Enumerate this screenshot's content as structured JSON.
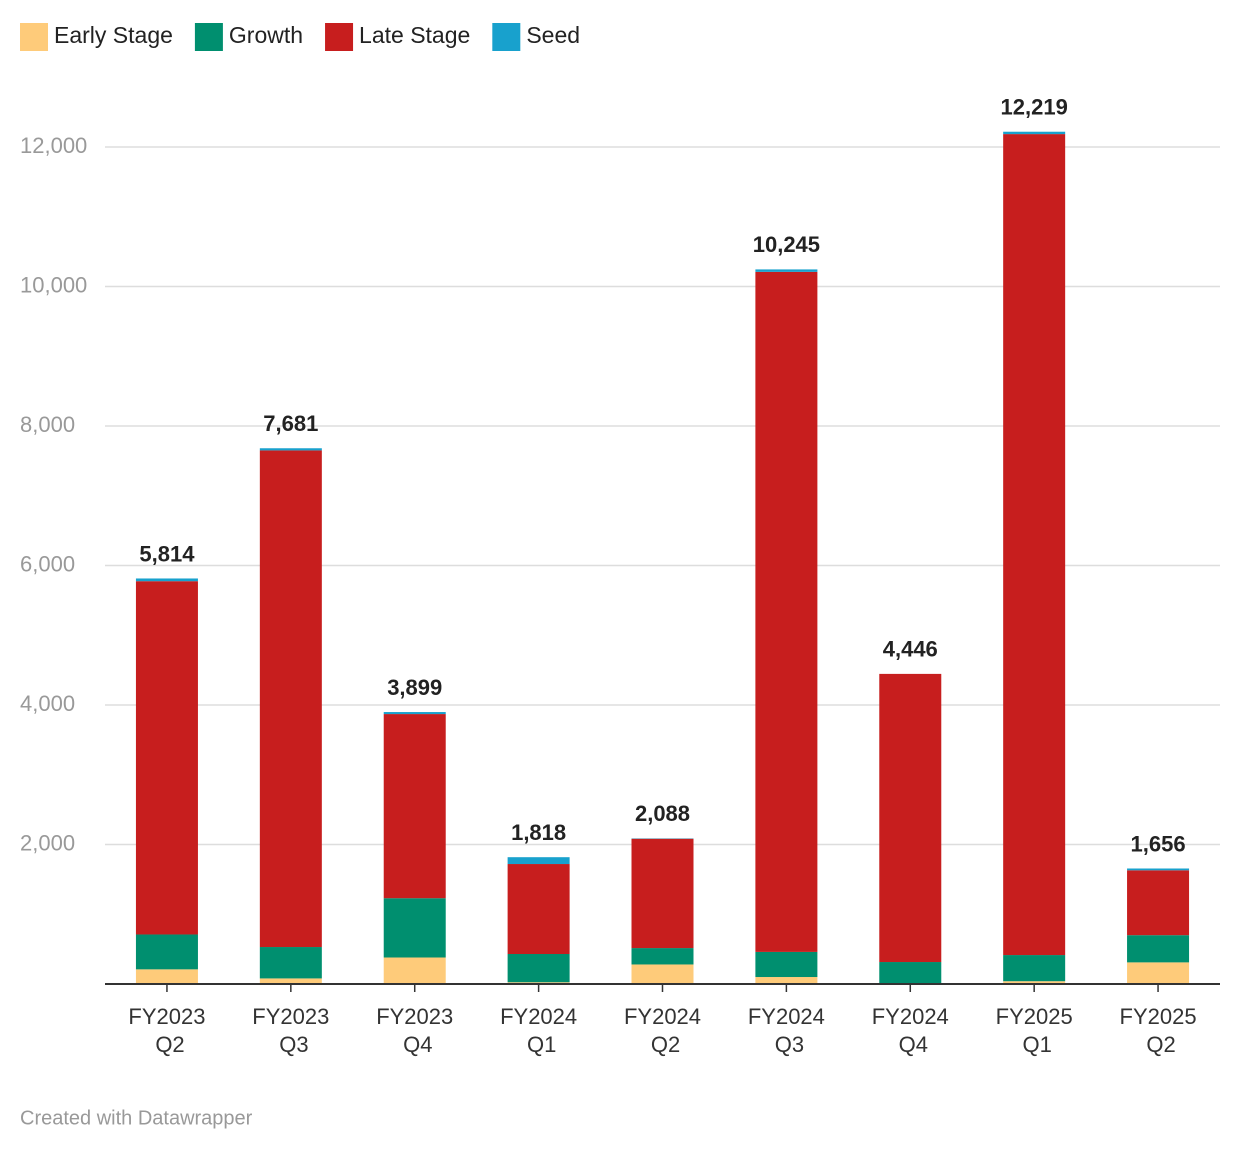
{
  "chart_data": {
    "type": "stacked-bar",
    "categories": [
      "FY2023 Q2",
      "FY2023 Q3",
      "FY2023 Q4",
      "FY2024 Q1",
      "FY2024 Q2",
      "FY2024 Q3",
      "FY2024 Q4",
      "FY2025 Q1",
      "FY2025 Q2"
    ],
    "series": [
      {
        "name": "Early Stage",
        "color": "#fecb7a",
        "values": [
          210,
          80,
          380,
          25,
          280,
          100,
          5,
          40,
          310
        ]
      },
      {
        "name": "Growth",
        "color": "#008f6f",
        "values": [
          500,
          450,
          850,
          405,
          235,
          360,
          310,
          375,
          390
        ]
      },
      {
        "name": "Late Stage",
        "color": "#c71e1e",
        "values": [
          5065,
          7120,
          2640,
          1290,
          1568,
          9750,
          4131,
          11770,
          930
        ]
      },
      {
        "name": "Seed",
        "color": "#18a1cd",
        "values": [
          39,
          31,
          29,
          98,
          5,
          35,
          0,
          34,
          26
        ]
      }
    ],
    "totals": [
      5814,
      7681,
      3899,
      1818,
      2088,
      10245,
      4446,
      12219,
      1656
    ],
    "total_labels": [
      "5,814",
      "7,681",
      "3,899",
      "1,818",
      "2,088",
      "10,245",
      "4,446",
      "12,219",
      "1,656"
    ],
    "ylim": [
      0,
      12000
    ],
    "yticks": [
      {
        "value": 2000,
        "label": "2,000"
      },
      {
        "value": 4000,
        "label": "4,000"
      },
      {
        "value": 6000,
        "label": "6,000"
      },
      {
        "value": 8000,
        "label": "8,000"
      },
      {
        "value": 10000,
        "label": "10,000"
      },
      {
        "value": 12000,
        "label": "12,000"
      }
    ],
    "grid": true,
    "legend": "top-left",
    "footer": "Created with Datawrapper"
  }
}
